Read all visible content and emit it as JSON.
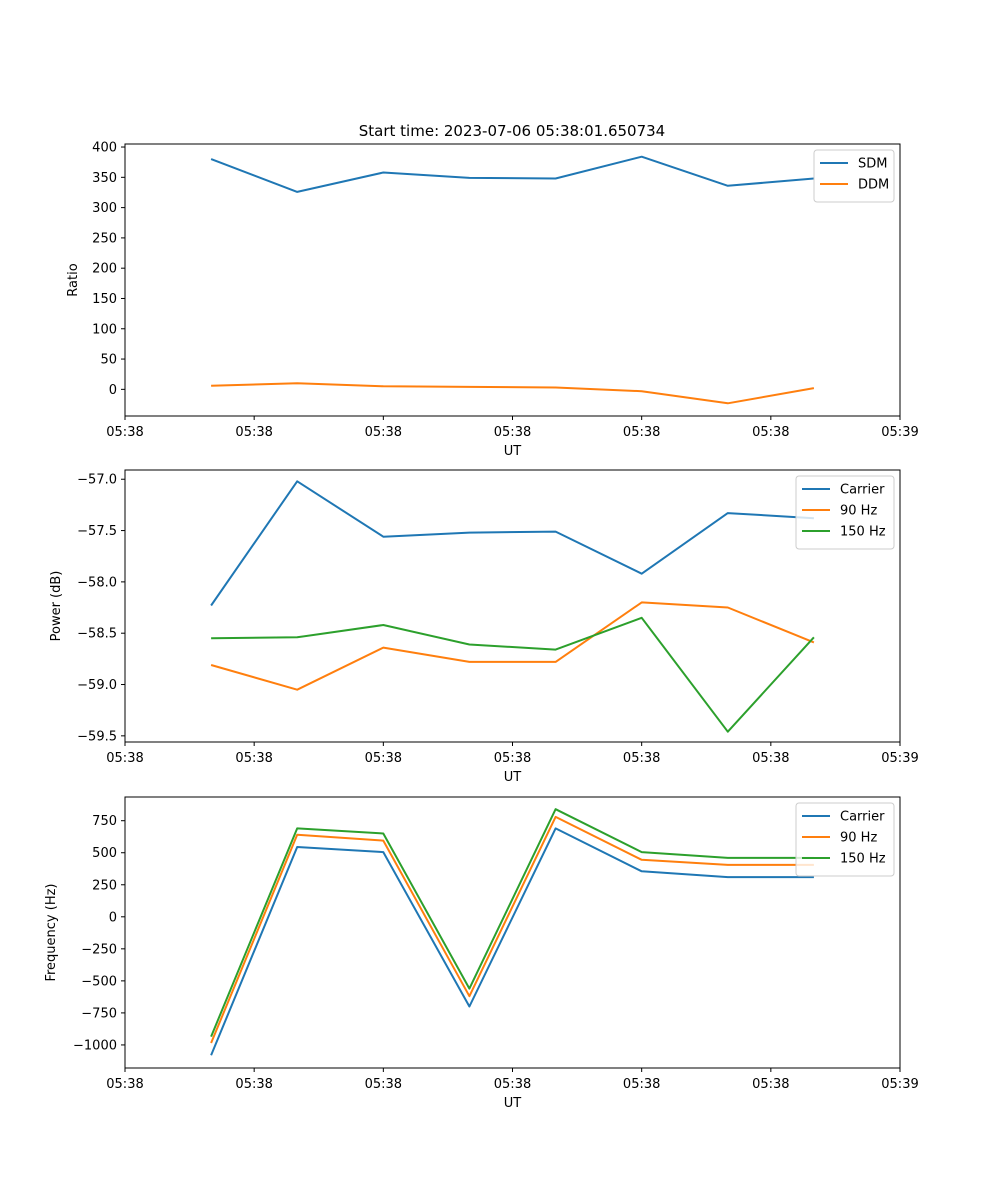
{
  "title": "Start time: 2023-07-06 05:38:01.650734",
  "colors": {
    "blue": "#1f77b4",
    "orange": "#ff7f0e",
    "green": "#2ca02c"
  },
  "chart_data": [
    {
      "type": "line",
      "xlabel": "UT",
      "ylabel": "Ratio",
      "xlim": [
        0,
        9
      ],
      "ylim": [
        -44,
        405
      ],
      "x": [
        1,
        2,
        3,
        4,
        5,
        6,
        7,
        8
      ],
      "xtick_values": [
        0,
        1.5,
        3,
        4.5,
        6,
        7.5,
        9
      ],
      "xtick_labels": [
        "05:38",
        "05:38",
        "05:38",
        "05:38",
        "05:38",
        "05:38",
        "05:39"
      ],
      "ytick_values": [
        400,
        350,
        300,
        250,
        200,
        150,
        100,
        50,
        0
      ],
      "ytick_labels": [
        "400",
        "350",
        "300",
        "250",
        "200",
        "150",
        "100",
        "50",
        "0"
      ],
      "legend_position": "top-right",
      "series": [
        {
          "name": "SDM",
          "color": "blue",
          "values": [
            380,
            326,
            358,
            349,
            348,
            384,
            336,
            348
          ]
        },
        {
          "name": "DDM",
          "color": "orange",
          "values": [
            6,
            10,
            5,
            4,
            3,
            -3,
            -23,
            2
          ]
        }
      ]
    },
    {
      "type": "line",
      "xlabel": "UT",
      "ylabel": "Power (dB)",
      "xlim": [
        0,
        9
      ],
      "ylim": [
        -59.56,
        -56.91
      ],
      "x": [
        1,
        2,
        3,
        4,
        5,
        6,
        7,
        8
      ],
      "xtick_values": [
        0,
        1.5,
        3,
        4.5,
        6,
        7.5,
        9
      ],
      "xtick_labels": [
        "05:38",
        "05:38",
        "05:38",
        "05:38",
        "05:38",
        "05:38",
        "05:39"
      ],
      "ytick_values": [
        -57.0,
        -57.5,
        -58.0,
        -58.5,
        -59.0,
        -59.5
      ],
      "ytick_labels": [
        "−57.0",
        "−57.5",
        "−58.0",
        "−58.5",
        "−59.0",
        "−59.5"
      ],
      "legend_position": "top-right",
      "series": [
        {
          "name": "Carrier",
          "color": "blue",
          "values": [
            -58.23,
            -57.02,
            -57.56,
            -57.52,
            -57.51,
            -57.92,
            -57.33,
            -57.38
          ]
        },
        {
          "name": "90 Hz",
          "color": "orange",
          "values": [
            -58.81,
            -59.05,
            -58.64,
            -58.78,
            -58.78,
            -58.2,
            -58.25,
            -58.59
          ]
        },
        {
          "name": "150 Hz",
          "color": "green",
          "values": [
            -58.55,
            -58.54,
            -58.42,
            -58.61,
            -58.66,
            -58.35,
            -59.46,
            -58.54
          ]
        }
      ]
    },
    {
      "type": "line",
      "xlabel": "UT",
      "ylabel": "Frequency (Hz)",
      "xlim": [
        0,
        9
      ],
      "ylim": [
        -1180,
        935
      ],
      "x": [
        1,
        2,
        3,
        4,
        5,
        6,
        7,
        8
      ],
      "xtick_values": [
        0,
        1.5,
        3,
        4.5,
        6,
        7.5,
        9
      ],
      "xtick_labels": [
        "05:38",
        "05:38",
        "05:38",
        "05:38",
        "05:38",
        "05:38",
        "05:39"
      ],
      "ytick_values": [
        750,
        500,
        250,
        0,
        -250,
        -500,
        -750,
        -1000
      ],
      "ytick_labels": [
        "750",
        "500",
        "250",
        "0",
        "−250",
        "−500",
        "−750",
        "−1000"
      ],
      "legend_position": "top-right",
      "series": [
        {
          "name": "Carrier",
          "color": "blue",
          "values": [
            -1080,
            545,
            505,
            -700,
            690,
            355,
            310,
            310
          ]
        },
        {
          "name": "90 Hz",
          "color": "orange",
          "values": [
            -985,
            640,
            595,
            -620,
            780,
            445,
            405,
            405
          ]
        },
        {
          "name": "150 Hz",
          "color": "green",
          "values": [
            -935,
            690,
            650,
            -560,
            840,
            505,
            460,
            460
          ]
        }
      ]
    }
  ]
}
